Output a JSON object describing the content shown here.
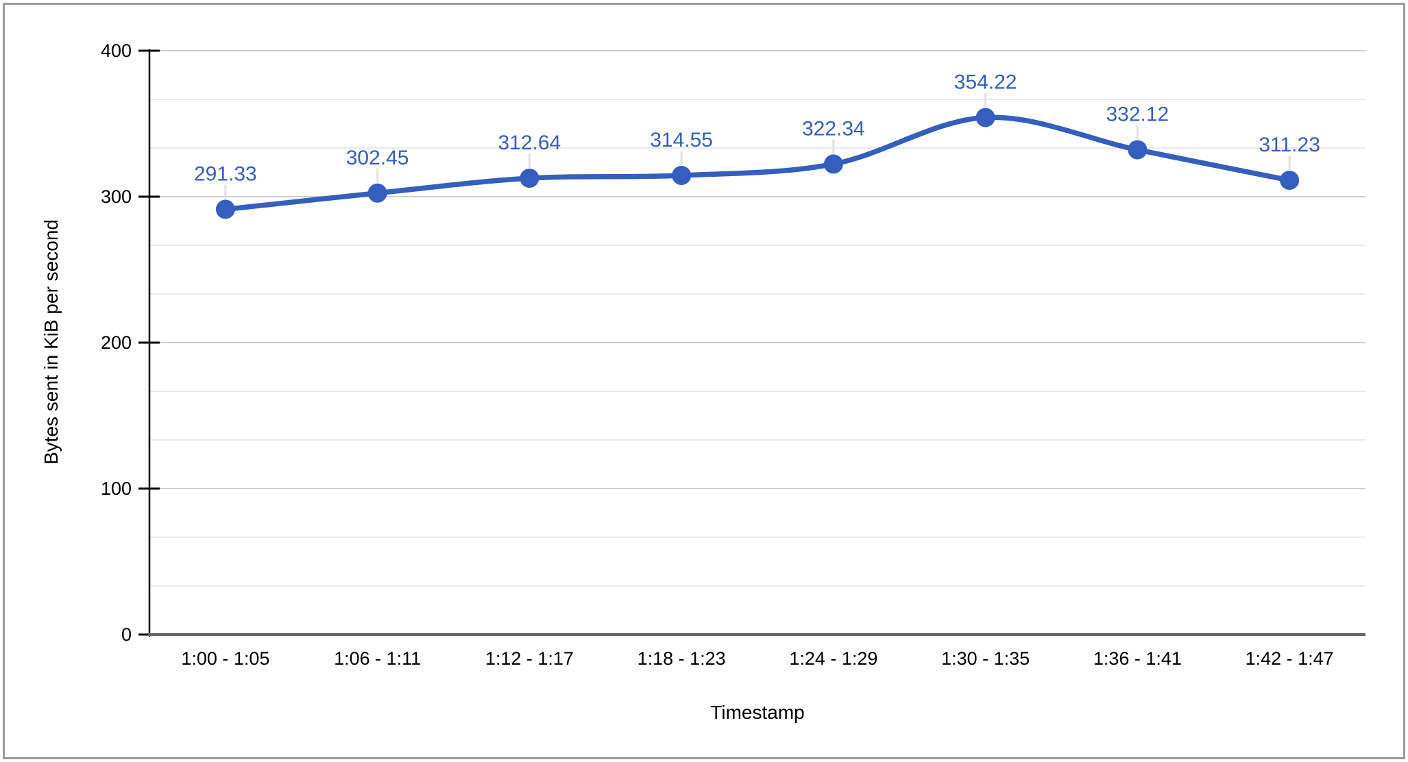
{
  "chart_data": {
    "type": "line",
    "title": "",
    "categories": [
      "1:00 - 1:05",
      "1:06 - 1:11",
      "1:12 - 1:17",
      "1:18 - 1:23",
      "1:24 - 1:29",
      "1:30 - 1:35",
      "1:36 - 1:41",
      "1:42 - 1:47"
    ],
    "values": [
      291.33,
      302.45,
      312.64,
      314.55,
      322.34,
      354.22,
      332.12,
      311.23
    ],
    "value_labels": [
      "291.33",
      "302.45",
      "312.64",
      "314.55",
      "322.34",
      "354.22",
      "332.12",
      "311.23"
    ],
    "xlabel": "Timestamp",
    "ylabel": "Bytes sent in KiB per second",
    "ylim": [
      0,
      400
    ],
    "y_ticks": [
      0,
      100,
      200,
      300,
      400
    ],
    "minor_grid_divisions": 3,
    "grid": true,
    "legend": "none",
    "curve": "smooth",
    "point_labels_visible": true,
    "colors": {
      "series": "#355EBE",
      "point_label": "#355EBE",
      "major_gridline": "#cfcfcf",
      "minor_gridline": "#e9e9e9",
      "y_axis_line": "#000000",
      "tick_mark": "#000000",
      "x_baseline": "#646464",
      "tick_label": "#000000",
      "axis_title": "#000000",
      "annotation_stem": "#e0e0e0",
      "page_border": "#9b9b9b",
      "background": "#ffffff"
    }
  }
}
